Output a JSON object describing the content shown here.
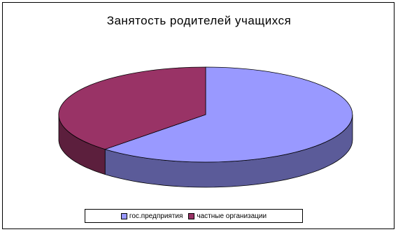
{
  "chart_data": {
    "type": "pie",
    "title": "Занятость родителей учащихся",
    "categories": [
      "гос.предприятия",
      "частные организации"
    ],
    "values": [
      62,
      38
    ],
    "colors": [
      "#9999ff",
      "#993366"
    ],
    "side_colors": [
      "#5b5b99",
      "#5c1f3d"
    ],
    "legend_position": "bottom",
    "three_d": true
  }
}
